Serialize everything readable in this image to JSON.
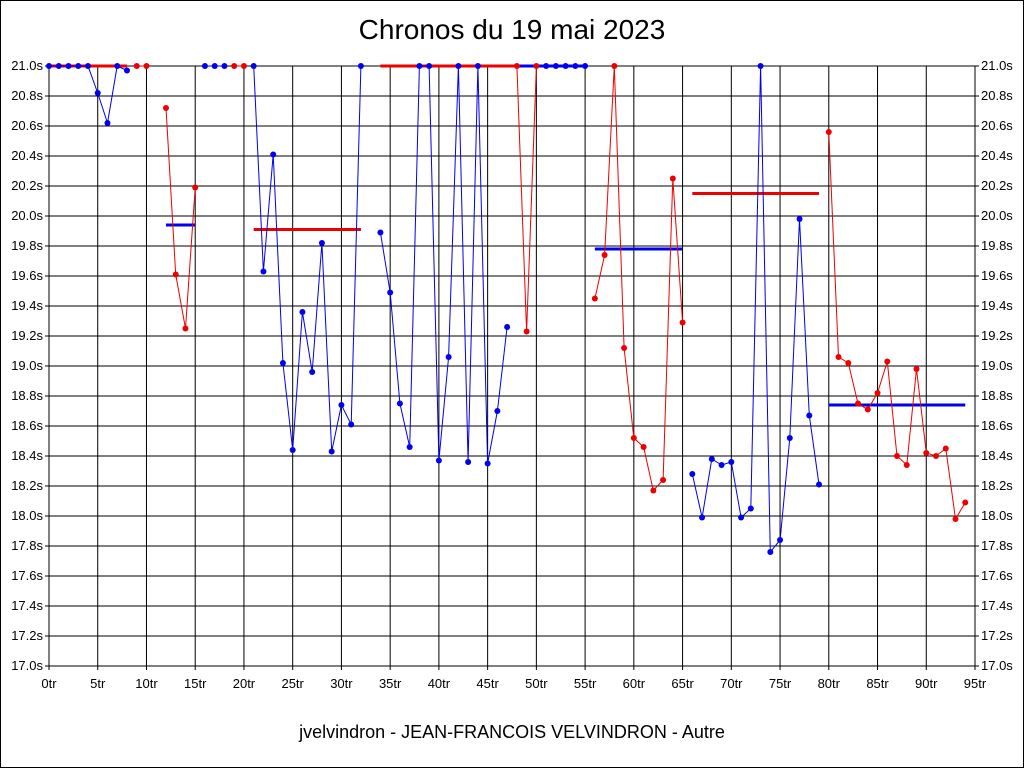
{
  "title": "Chronos du 19 mai 2023",
  "footer": "jvelvindron - JEAN-FRANCOIS VELVINDRON - Autre",
  "chart_data": {
    "type": "line",
    "title": "Chronos du 19 mai 2023",
    "xlabel": "",
    "ylabel": "",
    "xlim": [
      0,
      95
    ],
    "ylim": [
      17.0,
      21.0
    ],
    "grid": true,
    "x_ticks": [
      "0tr",
      "5tr",
      "10tr",
      "15tr",
      "20tr",
      "25tr",
      "30tr",
      "35tr",
      "40tr",
      "45tr",
      "50tr",
      "55tr",
      "60tr",
      "65tr",
      "70tr",
      "75tr",
      "80tr",
      "85tr",
      "90tr",
      "95tr"
    ],
    "y_ticks": [
      "17.0s",
      "17.2s",
      "17.4s",
      "17.6s",
      "17.8s",
      "18.0s",
      "18.2s",
      "18.4s",
      "18.6s",
      "18.8s",
      "19.0s",
      "19.2s",
      "19.4s",
      "19.6s",
      "19.8s",
      "20.0s",
      "20.2s",
      "20.4s",
      "20.6s",
      "20.8s",
      "21.0s"
    ],
    "colors": {
      "blue": "#0000ee",
      "red": "#ee0000"
    },
    "series": [
      {
        "color": "blue",
        "points": [
          [
            0,
            21.0
          ],
          [
            1,
            21.0
          ],
          [
            2,
            21.0
          ],
          [
            3,
            21.0
          ],
          [
            4,
            21.0
          ],
          [
            5,
            20.82
          ],
          [
            6,
            20.62
          ],
          [
            7,
            21.0
          ],
          [
            8,
            20.97
          ]
        ]
      },
      {
        "color": "red",
        "points": [
          [
            9,
            21.0
          ],
          [
            10,
            21.0
          ]
        ]
      },
      {
        "color": "red",
        "points": [
          [
            12,
            20.72
          ],
          [
            13,
            19.61
          ],
          [
            14,
            19.25
          ],
          [
            15,
            20.19
          ]
        ]
      },
      {
        "color": "blue",
        "points": [
          [
            16,
            21.0
          ],
          [
            17,
            21.0
          ],
          [
            18,
            21.0
          ]
        ]
      },
      {
        "color": "red",
        "points": [
          [
            19,
            21.0
          ],
          [
            20,
            21.0
          ]
        ]
      },
      {
        "color": "blue",
        "points": [
          [
            21,
            21.0
          ],
          [
            22,
            19.63
          ],
          [
            23,
            20.41
          ],
          [
            24,
            19.02
          ],
          [
            25,
            18.44
          ],
          [
            26,
            19.36
          ],
          [
            27,
            18.96
          ],
          [
            28,
            19.82
          ],
          [
            29,
            18.43
          ],
          [
            30,
            18.74
          ],
          [
            31,
            18.61
          ],
          [
            32,
            21.0
          ]
        ]
      },
      {
        "color": "blue",
        "points": [
          [
            34,
            19.89
          ],
          [
            35,
            19.49
          ],
          [
            36,
            18.75
          ],
          [
            37,
            18.46
          ],
          [
            38,
            21.0
          ],
          [
            39,
            21.0
          ],
          [
            40,
            18.37
          ],
          [
            41,
            19.06
          ],
          [
            42,
            21.0
          ],
          [
            43,
            18.36
          ],
          [
            44,
            21.0
          ],
          [
            45,
            18.35
          ],
          [
            46,
            18.7
          ],
          [
            47,
            19.26
          ]
        ]
      },
      {
        "color": "red",
        "points": [
          [
            48,
            21.0
          ],
          [
            49,
            19.23
          ],
          [
            50,
            21.0
          ]
        ]
      },
      {
        "color": "blue",
        "points": [
          [
            51,
            21.0
          ],
          [
            52,
            21.0
          ],
          [
            53,
            21.0
          ],
          [
            54,
            21.0
          ],
          [
            55,
            21.0
          ]
        ]
      },
      {
        "color": "red",
        "points": [
          [
            56,
            19.45
          ],
          [
            57,
            19.74
          ],
          [
            58,
            21.0
          ],
          [
            59,
            19.12
          ],
          [
            60,
            18.52
          ],
          [
            61,
            18.46
          ],
          [
            62,
            18.17
          ],
          [
            63,
            18.24
          ],
          [
            64,
            20.25
          ],
          [
            65,
            19.29
          ]
        ]
      },
      {
        "color": "blue",
        "points": [
          [
            66,
            18.28
          ],
          [
            67,
            17.99
          ],
          [
            68,
            18.38
          ],
          [
            69,
            18.34
          ],
          [
            70,
            18.36
          ],
          [
            71,
            17.99
          ],
          [
            72,
            18.05
          ],
          [
            73,
            21.0
          ],
          [
            74,
            17.76
          ],
          [
            75,
            17.84
          ],
          [
            76,
            18.52
          ],
          [
            77,
            19.98
          ],
          [
            78,
            18.67
          ],
          [
            79,
            18.21
          ]
        ]
      },
      {
        "color": "red",
        "points": [
          [
            80,
            20.56
          ],
          [
            81,
            19.06
          ],
          [
            82,
            19.02
          ],
          [
            83,
            18.75
          ],
          [
            84,
            18.71
          ],
          [
            85,
            18.82
          ],
          [
            86,
            19.03
          ],
          [
            87,
            18.4
          ],
          [
            88,
            18.34
          ],
          [
            89,
            18.98
          ],
          [
            90,
            18.42
          ],
          [
            91,
            18.4
          ],
          [
            92,
            18.45
          ],
          [
            93,
            17.98
          ],
          [
            94,
            18.09
          ]
        ]
      }
    ],
    "averages": [
      {
        "color": "red",
        "x": [
          0,
          8
        ],
        "y": 21.0
      },
      {
        "color": "blue",
        "x": [
          12,
          15
        ],
        "y": 19.94
      },
      {
        "color": "red",
        "x": [
          21,
          32
        ],
        "y": 19.91
      },
      {
        "color": "red",
        "x": [
          34,
          48
        ],
        "y": 21.0
      },
      {
        "color": "blue",
        "x": [
          48,
          55
        ],
        "y": 21.0
      },
      {
        "color": "blue",
        "x": [
          56,
          65
        ],
        "y": 19.78
      },
      {
        "color": "red",
        "x": [
          66,
          79
        ],
        "y": 20.15
      },
      {
        "color": "blue",
        "x": [
          80,
          94
        ],
        "y": 18.74
      }
    ]
  }
}
